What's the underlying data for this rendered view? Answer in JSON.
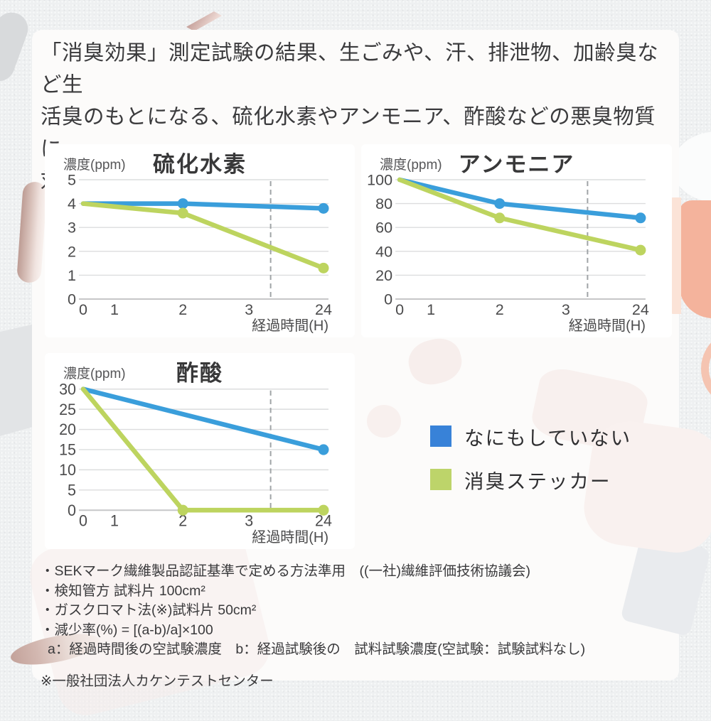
{
  "header": {
    "text": "「消臭効果」測定試験の結果、生ごみや、汗、排泄物、加齢臭など生\n活臭のもとになる、硫化水素やアンモニア、酢酸などの悪臭物質に\n対して消臭効果を発揮しました。"
  },
  "legend": {
    "items": [
      {
        "label": "なにもしていない",
        "color": "#3882d8"
      },
      {
        "label": "消臭ステッカー",
        "color": "#bdd46a"
      }
    ]
  },
  "colors": {
    "series_blue": "#3a9edb",
    "series_green": "#bdd45f",
    "grid": "#dcddde",
    "baseline": "#c6c7c8",
    "dashed": "#a0a4a7",
    "tick_text": "#4b4b4c",
    "peach_accent": "#f4b39c"
  },
  "chart_data": [
    {
      "type": "line",
      "title": "硫化水素",
      "ylabel": "濃度(ppm)",
      "xlabel": "経過時間(H)",
      "categories": [
        "0",
        "1",
        "2",
        "3",
        "24"
      ],
      "cat_pos": [
        0,
        0.13,
        0.415,
        0.69,
        1
      ],
      "ymax": 5,
      "yticks": [
        5,
        4,
        3,
        2,
        1,
        0
      ],
      "ylim": [
        0,
        5
      ],
      "grid": true,
      "dashed_x": 0.78,
      "series": [
        {
          "name": "なにもしていない",
          "color": "#3a9edb",
          "points": [
            [
              "0",
              4,
              0
            ],
            [
              "2",
              4,
              1
            ],
            [
              "24",
              3.8,
              1
            ]
          ]
        },
        {
          "name": "消臭ステッカー",
          "color": "#bdd45f",
          "points": [
            [
              "0",
              4,
              0
            ],
            [
              "2",
              3.6,
              1
            ],
            [
              "24",
              1.3,
              1
            ]
          ]
        }
      ]
    },
    {
      "type": "line",
      "title": "アンモニア",
      "ylabel": "濃度(ppm)",
      "xlabel": "経過時間(H)",
      "categories": [
        "0",
        "1",
        "2",
        "3",
        "24"
      ],
      "cat_pos": [
        0,
        0.13,
        0.415,
        0.69,
        1
      ],
      "ymax": 100,
      "yticks": [
        100,
        80,
        60,
        40,
        20,
        0
      ],
      "ylim": [
        0,
        100
      ],
      "grid": true,
      "dashed_x": 0.78,
      "series": [
        {
          "name": "なにもしていない",
          "color": "#3a9edb",
          "points": [
            [
              "0",
              100,
              0
            ],
            [
              "2",
              80,
              1
            ],
            [
              "24",
              68,
              1
            ]
          ]
        },
        {
          "name": "消臭ステッカー",
          "color": "#bdd45f",
          "points": [
            [
              "0",
              100,
              0
            ],
            [
              "2",
              68,
              1
            ],
            [
              "24",
              41,
              1
            ]
          ]
        }
      ]
    },
    {
      "type": "line",
      "title": "酢酸",
      "ylabel": "濃度(ppm)",
      "xlabel": "経過時間(H)",
      "categories": [
        "0",
        "1",
        "2",
        "3",
        "24"
      ],
      "cat_pos": [
        0,
        0.13,
        0.415,
        0.69,
        1
      ],
      "ymax": 30,
      "yticks": [
        30,
        25,
        20,
        15,
        10,
        5,
        0
      ],
      "ylim": [
        0,
        30
      ],
      "grid": true,
      "dashed_x": 0.78,
      "series": [
        {
          "name": "なにもしていない",
          "color": "#3a9edb",
          "points": [
            [
              "0",
              30,
              0
            ],
            [
              "24",
              15,
              1
            ]
          ]
        },
        {
          "name": "消臭ステッカー",
          "color": "#bdd45f",
          "points": [
            [
              "0",
              30,
              0
            ],
            [
              "2",
              0,
              1
            ],
            [
              "24",
              0,
              1
            ]
          ]
        }
      ]
    }
  ],
  "footnotes": {
    "lines": [
      "・SEKマーク繊維製品認証基準で定める方法準用　((一社)繊維評価技術協議会)",
      "・検知管方 試料片 100cm²",
      "・ガスクロマト法(※)試料片 50cm²",
      "・減少率(%) = [(a-b)/a]×100",
      "a：経過時間後の空試験濃度　b：経過試験後の　試料試験濃度(空試験：試験試料なし)"
    ],
    "note": "※一般社団法人カケンテストセンター"
  }
}
